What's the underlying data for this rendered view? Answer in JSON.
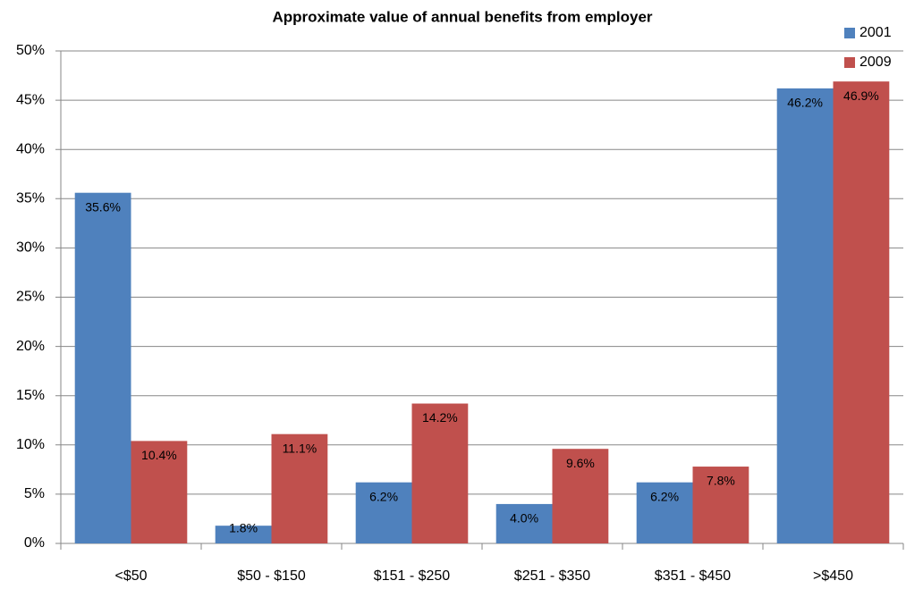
{
  "chart_data": {
    "type": "bar",
    "title": "Approximate value of annual benefits from employer",
    "categories": [
      "<$50",
      "$50 - $150",
      "$151 - $250",
      "$251 - $350",
      "$351 - $450",
      ">$450"
    ],
    "series": [
      {
        "name": "2001",
        "color": "#4f81bd",
        "values": [
          35.6,
          1.8,
          6.2,
          4.0,
          6.2,
          46.2
        ],
        "value_labels": [
          "35.6%",
          "1.8%",
          "6.2%",
          "4.0%",
          "6.2%",
          "46.2%"
        ]
      },
      {
        "name": "2009",
        "color": "#c0504d",
        "values": [
          10.4,
          11.1,
          14.2,
          9.6,
          7.8,
          46.9
        ],
        "value_labels": [
          "10.4%",
          "11.1%",
          "14.2%",
          "9.6%",
          "7.8%",
          "46.9%"
        ]
      }
    ],
    "ylim": [
      0,
      50
    ],
    "yticks": [
      {
        "value": 0,
        "label": "0%"
      },
      {
        "value": 5,
        "label": "5%"
      },
      {
        "value": 10,
        "label": "10%"
      },
      {
        "value": 15,
        "label": "15%"
      },
      {
        "value": 20,
        "label": "20%"
      },
      {
        "value": 25,
        "label": "25%"
      },
      {
        "value": 30,
        "label": "30%"
      },
      {
        "value": 35,
        "label": "35%"
      },
      {
        "value": 40,
        "label": "40%"
      },
      {
        "value": 45,
        "label": "45%"
      },
      {
        "value": 50,
        "label": "50%"
      }
    ],
    "grid": true,
    "legend": "top-right"
  }
}
